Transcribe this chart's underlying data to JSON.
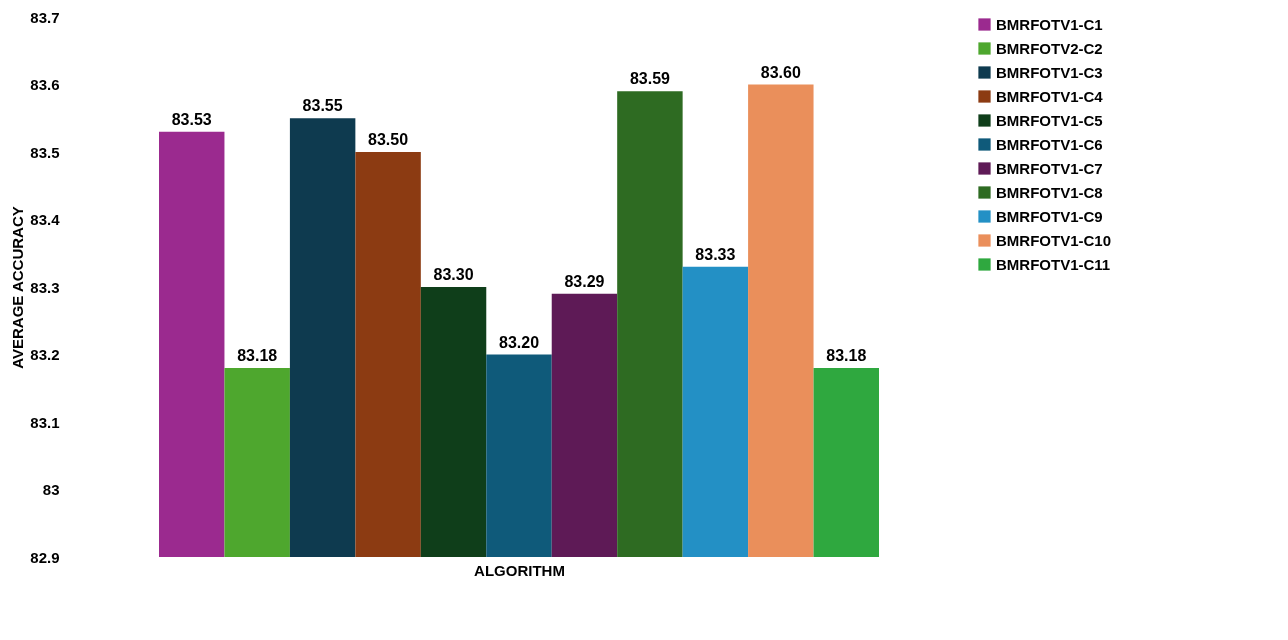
{
  "chart_data": {
    "type": "bar",
    "xlabel": "ALGORITHM",
    "ylabel": "AVERAGE ACCURACY",
    "categories": [
      null
    ],
    "series": [
      {
        "name": "BMRFOTV1-C1",
        "color": "#9b2a8f",
        "values": [
          83.53
        ],
        "value_labels": [
          "83.53"
        ]
      },
      {
        "name": "BMRFOTV2-C2",
        "color": "#4ea72e",
        "values": [
          83.18
        ],
        "value_labels": [
          "83.18"
        ]
      },
      {
        "name": "BMRFOTV1-C3",
        "color": "#0e3a4f",
        "values": [
          83.55
        ],
        "value_labels": [
          "83.55"
        ]
      },
      {
        "name": "BMRFOTV1-C4",
        "color": "#8c3b12",
        "values": [
          83.5
        ],
        "value_labels": [
          "83.50"
        ]
      },
      {
        "name": "BMRFOTV1-C5",
        "color": "#0f3e1a",
        "values": [
          83.3
        ],
        "value_labels": [
          "83.30"
        ]
      },
      {
        "name": "BMRFOTV1-C6",
        "color": "#0f5a7a",
        "values": [
          83.2
        ],
        "value_labels": [
          "83.20"
        ]
      },
      {
        "name": "BMRFOTV1-C7",
        "color": "#5e1a56",
        "values": [
          83.29
        ],
        "value_labels": [
          "83.29"
        ]
      },
      {
        "name": "BMRFOTV1-C8",
        "color": "#2e6b22",
        "values": [
          83.59
        ],
        "value_labels": [
          "83.59"
        ]
      },
      {
        "name": "BMRFOTV1-C9",
        "color": "#2390c5",
        "values": [
          83.33
        ],
        "value_labels": [
          "83.33"
        ]
      },
      {
        "name": "BMRFOTV1-C10",
        "color": "#ea8f5b",
        "values": [
          83.6
        ],
        "value_labels": [
          "83.60"
        ]
      },
      {
        "name": "BMRFOTV1-C11",
        "color": "#2fa83f",
        "values": [
          83.18
        ],
        "value_labels": [
          "83.18"
        ]
      }
    ],
    "ylim": [
      82.9,
      83.7
    ],
    "yticks": [
      82.9,
      83,
      83.1,
      83.2,
      83.3,
      83.4,
      83.5,
      83.6,
      83.7
    ],
    "grid": false,
    "legend": "right"
  }
}
